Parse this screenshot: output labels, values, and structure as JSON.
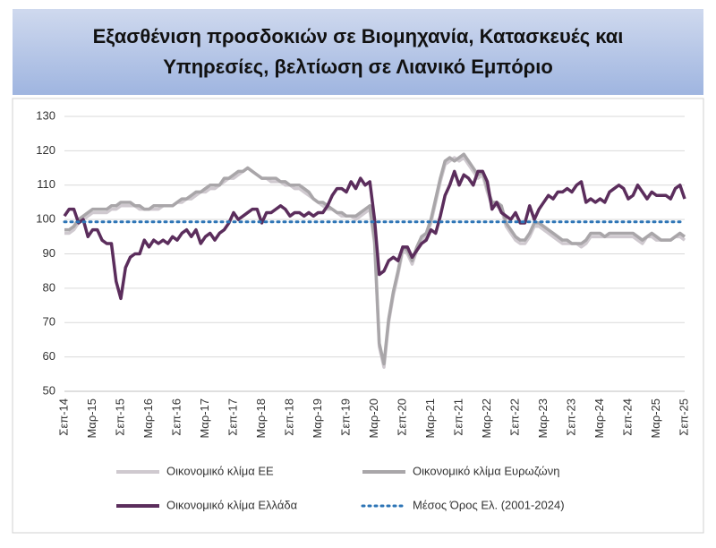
{
  "chart_data": {
    "type": "line",
    "title": "Εξασθένιση προσδοκιών σε Βιομηχανία, Κατασκευές και Υπηρεσίες, βελτίωση σε Λιανικό Εμπόριο",
    "categories": [
      "Σεπ-14",
      null,
      null,
      null,
      null,
      null,
      "Μαρ-15",
      null,
      null,
      null,
      null,
      null,
      "Σεπ-15",
      null,
      null,
      null,
      null,
      null,
      "Μαρ-16",
      null,
      null,
      null,
      null,
      null,
      "Σεπ-16",
      null,
      null,
      null,
      null,
      null,
      "Μαρ-17",
      null,
      null,
      null,
      null,
      null,
      "Σεπ-17",
      null,
      null,
      null,
      null,
      null,
      "Μαρ-18",
      null,
      null,
      null,
      null,
      null,
      "Σεπ-18",
      null,
      null,
      null,
      null,
      null,
      "Μαρ-19",
      null,
      null,
      null,
      null,
      null,
      "Σεπ-19",
      null,
      null,
      null,
      null,
      null,
      "Μαρ-20",
      null,
      null,
      null,
      null,
      null,
      "Σεπ-20",
      null,
      null,
      null,
      null,
      null,
      "Μαρ-21",
      null,
      null,
      null,
      null,
      null,
      "Σεπ-21",
      null,
      null,
      null,
      null,
      null,
      "Μαρ-22",
      null,
      null,
      null,
      null,
      null,
      "Σεπ-22",
      null,
      null,
      null,
      null,
      null,
      "Μαρ-23",
      null,
      null,
      null,
      null,
      null,
      "Σεπ-23",
      null,
      null,
      null,
      null,
      null,
      "Μαρ-24",
      null,
      null,
      null,
      null,
      null,
      "Σεπ-24",
      null,
      null,
      null,
      null,
      null,
      "Μαρ-25",
      null,
      null,
      null,
      null,
      null,
      "Σεπ-25"
    ],
    "series": [
      {
        "name": "Οικονομικό κλίμα ΕΕ",
        "color": "#cfc9cf",
        "values": [
          96,
          96,
          97,
          99,
          100,
          101,
          102,
          102,
          102,
          102,
          103,
          103,
          104,
          104,
          104,
          104,
          103,
          103,
          103,
          103,
          103,
          104,
          104,
          104,
          105,
          105,
          106,
          106,
          107,
          108,
          108,
          109,
          109,
          110,
          111,
          112,
          112,
          113,
          114,
          115,
          114,
          113,
          112,
          112,
          111,
          111,
          111,
          110,
          110,
          109,
          109,
          108,
          107,
          106,
          105,
          104,
          103,
          103,
          102,
          101,
          101,
          101,
          100,
          101,
          102,
          103,
          93,
          63,
          57,
          70,
          78,
          84,
          91,
          90,
          87,
          91,
          94,
          95,
          99,
          105,
          111,
          116,
          117,
          118,
          117,
          118,
          116,
          114,
          112,
          113,
          108,
          104,
          104,
          103,
          98,
          96,
          94,
          93,
          93,
          95,
          98,
          98,
          97,
          96,
          95,
          94,
          93,
          93,
          93,
          93,
          92,
          93,
          95,
          95,
          95,
          95,
          95,
          95,
          95,
          95,
          95,
          95,
          94,
          93,
          95,
          95,
          94,
          94,
          94,
          94,
          95,
          95,
          94
        ]
      },
      {
        "name": "Οικονομικό κλίμα Ευρωζώνη",
        "color": "#a9a6a9",
        "values": [
          97,
          97,
          98,
          100,
          101,
          102,
          103,
          103,
          103,
          103,
          104,
          104,
          105,
          105,
          105,
          104,
          104,
          103,
          103,
          104,
          104,
          104,
          104,
          104,
          105,
          106,
          106,
          107,
          108,
          108,
          109,
          110,
          110,
          110,
          112,
          112,
          113,
          114,
          114,
          115,
          114,
          113,
          112,
          112,
          112,
          112,
          111,
          111,
          110,
          110,
          110,
          109,
          108,
          106,
          105,
          105,
          104,
          103,
          102,
          102,
          101,
          101,
          101,
          102,
          103,
          104,
          94,
          64,
          58,
          71,
          79,
          85,
          92,
          91,
          88,
          92,
          95,
          96,
          100,
          106,
          112,
          117,
          118,
          117,
          118,
          119,
          117,
          115,
          113,
          114,
          109,
          105,
          105,
          104,
          99,
          97,
          95,
          94,
          94,
          96,
          99,
          99,
          98,
          97,
          96,
          95,
          94,
          94,
          93,
          93,
          93,
          94,
          96,
          96,
          96,
          95,
          96,
          96,
          96,
          96,
          96,
          96,
          95,
          94,
          95,
          96,
          95,
          94,
          94,
          94,
          95,
          96,
          95
        ]
      },
      {
        "name": "Οικονομικό κλίμα Ελλάδα",
        "color": "#5b2d5c",
        "values": [
          101,
          103,
          103,
          99,
          100,
          95,
          97,
          97,
          94,
          93,
          93,
          82,
          77,
          86,
          89,
          90,
          90,
          94,
          92,
          94,
          93,
          94,
          93,
          95,
          94,
          96,
          97,
          95,
          97,
          93,
          95,
          96,
          94,
          96,
          97,
          99,
          102,
          100,
          101,
          102,
          103,
          103,
          99,
          102,
          102,
          103,
          104,
          103,
          101,
          102,
          102,
          101,
          102,
          101,
          102,
          102,
          104,
          107,
          109,
          109,
          108,
          111,
          109,
          112,
          110,
          111,
          100,
          84,
          85,
          88,
          89,
          88,
          92,
          92,
          89,
          91,
          93,
          94,
          97,
          96,
          101,
          107,
          110,
          114,
          110,
          113,
          112,
          110,
          114,
          114,
          111,
          103,
          105,
          102,
          101,
          100,
          102,
          99,
          99,
          104,
          100,
          103,
          105,
          107,
          106,
          108,
          108,
          109,
          108,
          110,
          111,
          105,
          106,
          105,
          106,
          105,
          108,
          109,
          110,
          109,
          106,
          107,
          110,
          108,
          106,
          108,
          107,
          107,
          107,
          106,
          109,
          110,
          106
        ]
      }
    ],
    "reference_line": {
      "name": "Μέσος Όρος Ελ. (2001-2024)",
      "value": 99.3,
      "color": "#2e75b6"
    },
    "ylim": [
      50,
      130
    ],
    "yticks": [
      50,
      60,
      70,
      80,
      90,
      100,
      110,
      120,
      130
    ],
    "grid": true
  }
}
